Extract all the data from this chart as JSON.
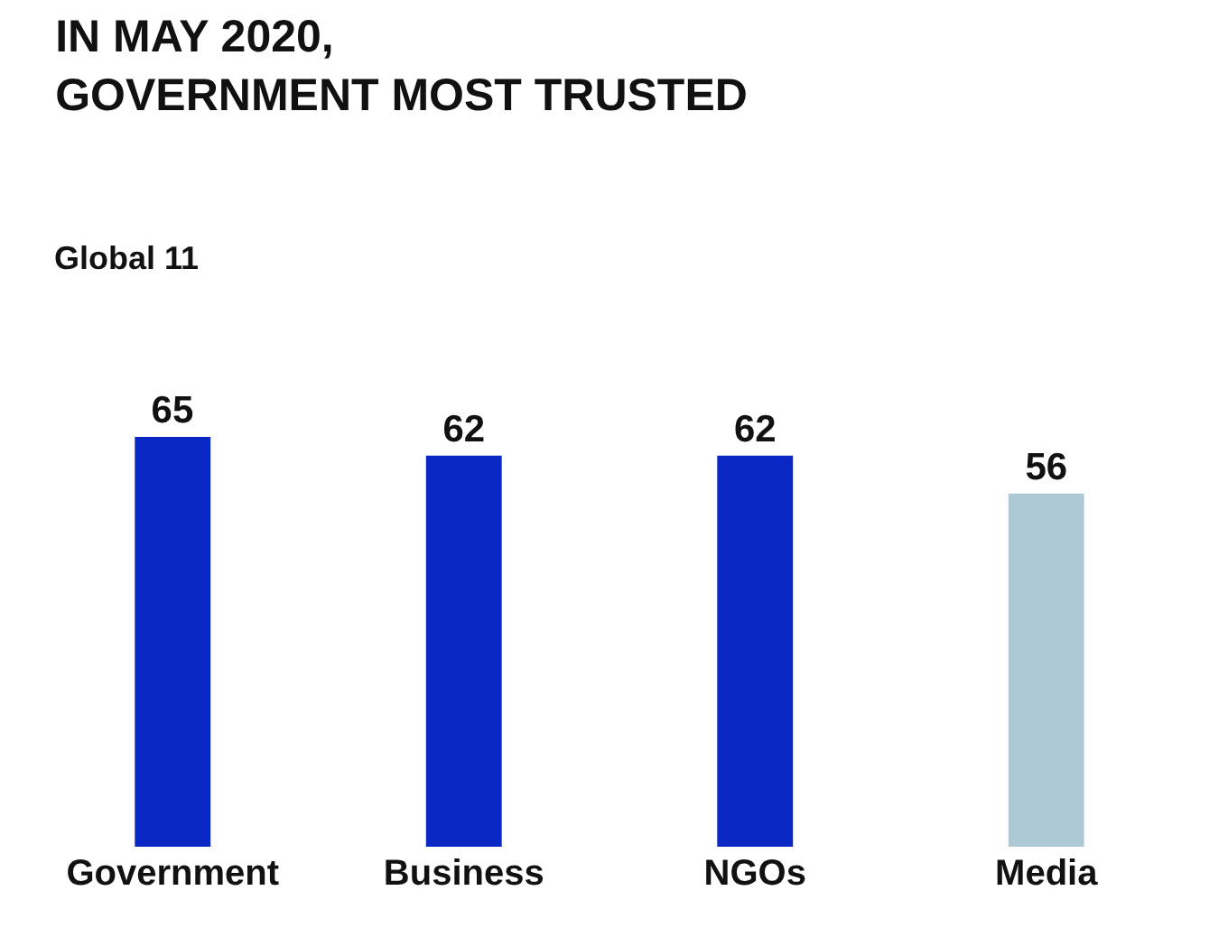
{
  "chart_data": {
    "type": "bar",
    "title": "IN MAY 2020,\nGOVERNMENT MOST TRUSTED",
    "subtitle": "Global 11",
    "categories": [
      "Government",
      "Business",
      "NGOs",
      "Media"
    ],
    "values": [
      65,
      62,
      62,
      56
    ],
    "colors": [
      "#0a28c4",
      "#0a28c4",
      "#0a28c4",
      "#aec9d6"
    ],
    "data_labels": true
  }
}
